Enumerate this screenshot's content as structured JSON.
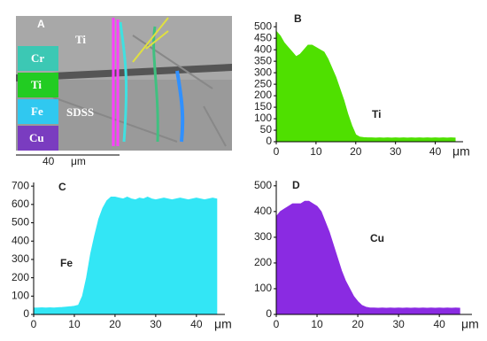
{
  "image_panel": {
    "panel_label": "A",
    "phase_top": "Ti",
    "phase_bottom": "SDSS",
    "legend": [
      "Cr",
      "Ti",
      "Fe",
      "Cu"
    ],
    "scale_value": "40",
    "scale_unit": "μm"
  },
  "chart_data": [
    {
      "type": "area",
      "panel_label": "B",
      "x_label": "μm",
      "x": [
        0,
        1,
        2,
        3,
        4,
        5,
        6,
        7,
        8,
        9,
        10,
        11,
        12,
        13,
        14,
        15,
        16,
        17,
        18,
        19,
        20,
        21,
        22,
        23,
        24,
        25,
        26,
        27,
        28,
        29,
        30,
        31,
        32,
        33,
        34,
        35,
        36,
        37,
        38,
        39,
        40,
        41,
        42,
        43,
        44,
        45
      ],
      "series": [
        {
          "name": "Ti",
          "color": "#4fe000",
          "values": [
            480,
            460,
            430,
            410,
            390,
            370,
            380,
            400,
            420,
            420,
            410,
            400,
            390,
            360,
            320,
            280,
            230,
            180,
            120,
            70,
            30,
            20,
            18,
            17,
            17,
            16,
            17,
            16,
            17,
            16,
            17,
            16,
            17,
            16,
            17,
            16,
            17,
            16,
            17,
            16,
            17,
            16,
            17,
            16,
            17,
            16
          ]
        }
      ],
      "xlim": [
        0,
        47
      ],
      "xticks": [
        0,
        10,
        20,
        30,
        40
      ],
      "ylim": [
        0,
        520
      ],
      "yticks": [
        0,
        50,
        100,
        150,
        200,
        250,
        300,
        350,
        400,
        450,
        500
      ]
    },
    {
      "type": "area",
      "panel_label": "C",
      "x_label": "μm",
      "x": [
        0,
        1,
        2,
        3,
        4,
        5,
        6,
        7,
        8,
        9,
        10,
        11,
        12,
        13,
        14,
        15,
        16,
        17,
        18,
        19,
        20,
        21,
        22,
        23,
        24,
        25,
        26,
        27,
        28,
        29,
        30,
        31,
        32,
        33,
        34,
        35,
        36,
        37,
        38,
        39,
        40,
        41,
        42,
        43,
        44,
        45
      ],
      "series": [
        {
          "name": "Fe",
          "color": "#33e6f5",
          "values": [
            35,
            35,
            36,
            35,
            36,
            35,
            37,
            38,
            40,
            42,
            45,
            50,
            100,
            200,
            330,
            430,
            520,
            580,
            620,
            640,
            640,
            635,
            630,
            640,
            630,
            625,
            635,
            630,
            640,
            630,
            625,
            630,
            635,
            630,
            625,
            630,
            635,
            630,
            625,
            630,
            635,
            630,
            625,
            630,
            635,
            630
          ]
        }
      ],
      "xlim": [
        0,
        47
      ],
      "xticks": [
        0,
        10,
        20,
        30,
        40
      ],
      "ylim": [
        0,
        720
      ],
      "yticks": [
        0,
        100,
        200,
        300,
        400,
        500,
        600,
        700
      ]
    },
    {
      "type": "area",
      "panel_label": "D",
      "x_label": "μm",
      "x": [
        0,
        1,
        2,
        3,
        4,
        5,
        6,
        7,
        8,
        9,
        10,
        11,
        12,
        13,
        14,
        15,
        16,
        17,
        18,
        19,
        20,
        21,
        22,
        23,
        24,
        25,
        26,
        27,
        28,
        29,
        30,
        31,
        32,
        33,
        34,
        35,
        36,
        37,
        38,
        39,
        40,
        41,
        42,
        43,
        44,
        45
      ],
      "series": [
        {
          "name": "Cu",
          "color": "#8a2be2",
          "values": [
            380,
            400,
            410,
            420,
            430,
            430,
            430,
            440,
            440,
            430,
            420,
            400,
            360,
            320,
            270,
            220,
            170,
            130,
            100,
            70,
            50,
            35,
            28,
            25,
            25,
            24,
            25,
            24,
            25,
            24,
            25,
            24,
            25,
            24,
            25,
            24,
            25,
            24,
            25,
            24,
            25,
            24,
            25,
            24,
            25,
            24
          ]
        }
      ],
      "xlim": [
        0,
        48
      ],
      "xticks": [
        0,
        10,
        20,
        30,
        40
      ],
      "ylim": [
        0,
        520
      ],
      "yticks": [
        0,
        100,
        200,
        300,
        400,
        500
      ]
    }
  ]
}
